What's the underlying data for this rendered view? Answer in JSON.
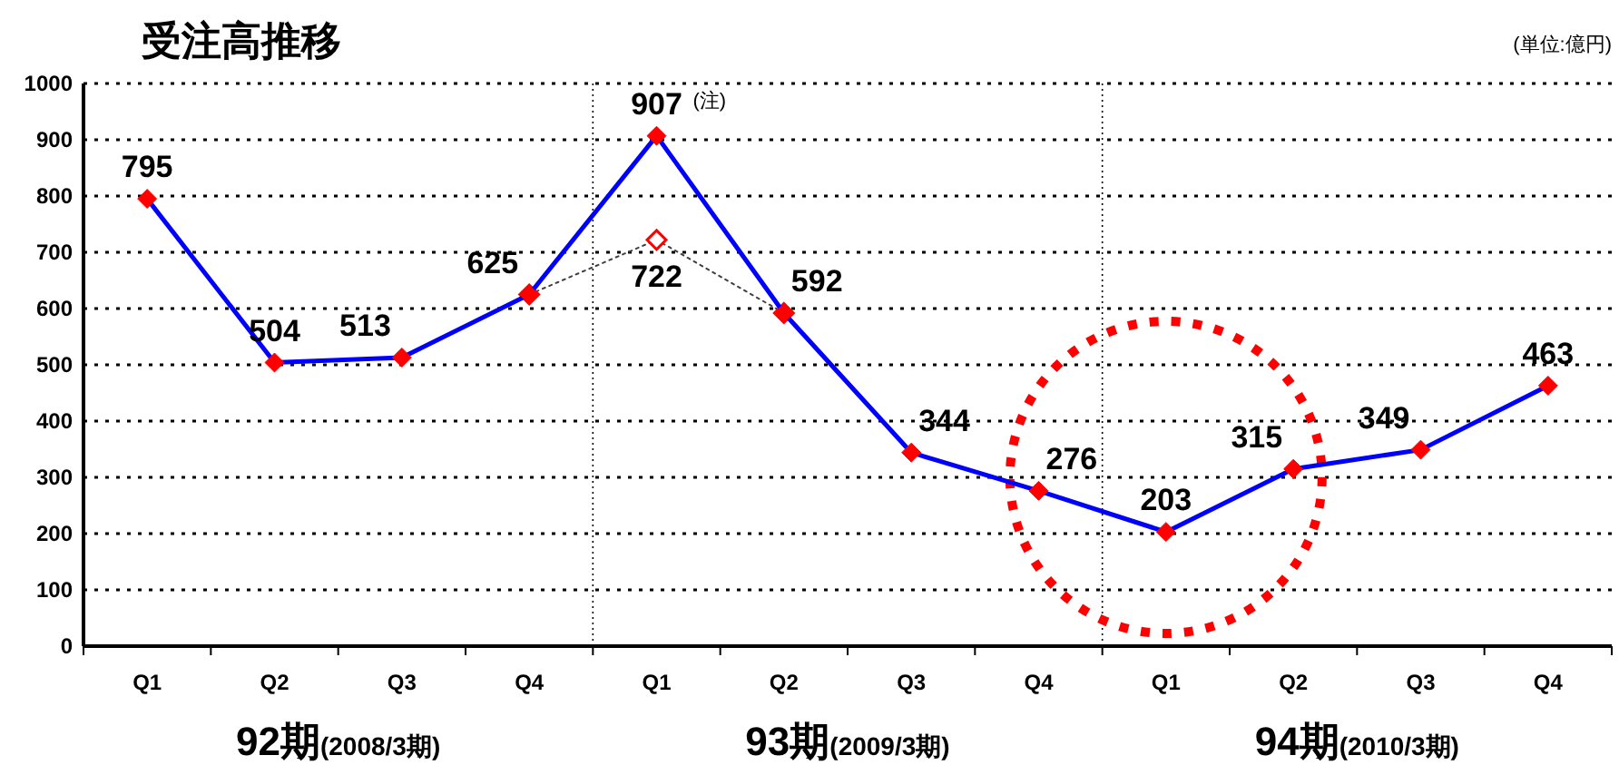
{
  "chart_data": {
    "type": "line",
    "title": "受注高推移",
    "categories": [
      "Q1",
      "Q2",
      "Q3",
      "Q4",
      "Q1",
      "Q2",
      "Q3",
      "Q4",
      "Q1",
      "Q2",
      "Q3",
      "Q4"
    ],
    "series": [
      {
        "color": "#0000ff",
        "line_style": "solid",
        "marker": "diamond",
        "colors": [
          "#ff0000",
          "#ff0000",
          "#ff0000",
          "#ff0000",
          "#ff0000",
          "#ff0000",
          "#ff0000",
          "#ff0000",
          "#ff0000",
          "#ff0000",
          "#ff0000",
          "#ff0000"
        ],
        "values": [
          795,
          504,
          513,
          625,
          907,
          592,
          344,
          276,
          203,
          315,
          349,
          463
        ],
        "value_labels": [
          "795",
          "504",
          "513",
          "625",
          "907",
          "592",
          "344",
          "276",
          "203",
          "315",
          "349",
          "463"
        ]
      },
      {
        "color": "#404040",
        "line_style": "dotted",
        "marker": "diamond",
        "colors": [
          null,
          null,
          null,
          "#ff0000",
          "#ff0000",
          "#ff0000",
          null,
          null,
          null,
          null,
          null,
          null
        ],
        "values": [
          null,
          null,
          null,
          625,
          722,
          592,
          null,
          null,
          null,
          null,
          null,
          null
        ],
        "value_labels": [
          null,
          null,
          null,
          null,
          "722",
          null,
          null,
          null,
          null,
          null,
          null,
          null
        ]
      }
    ],
    "ylim": [
      0,
      1000
    ],
    "yticks": [
      0,
      100,
      200,
      300,
      400,
      500,
      600,
      700,
      800,
      900,
      1000
    ],
    "grid": "y",
    "annotations": [
      "(単位:億円)",
      "(注)",
      "92期(2008/3期)",
      "93期(2009/3期)",
      "94期(2010/3期)"
    ]
  }
}
